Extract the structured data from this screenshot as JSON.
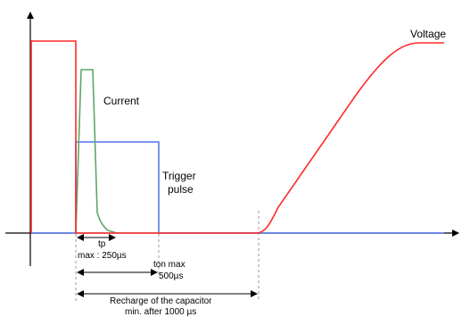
{
  "colors": {
    "voltage": "#ff2a2a",
    "current": "#5fa66a",
    "trigger": "#5577ee",
    "axis": "#000000",
    "dashed": "#9a9a9a"
  },
  "labels": {
    "voltage": "Voltage",
    "current": "Current",
    "trigger_line1": "Trigger",
    "trigger_line2": "pulse"
  },
  "dimensions": {
    "tp_line1": "tp",
    "tp_line2": "max : 250µs",
    "ton_line1": "ton max",
    "ton_line2": "500µs",
    "recharge_line1": "Recharge of the capacitor",
    "recharge_line2": "min. after 1000 µs"
  }
}
